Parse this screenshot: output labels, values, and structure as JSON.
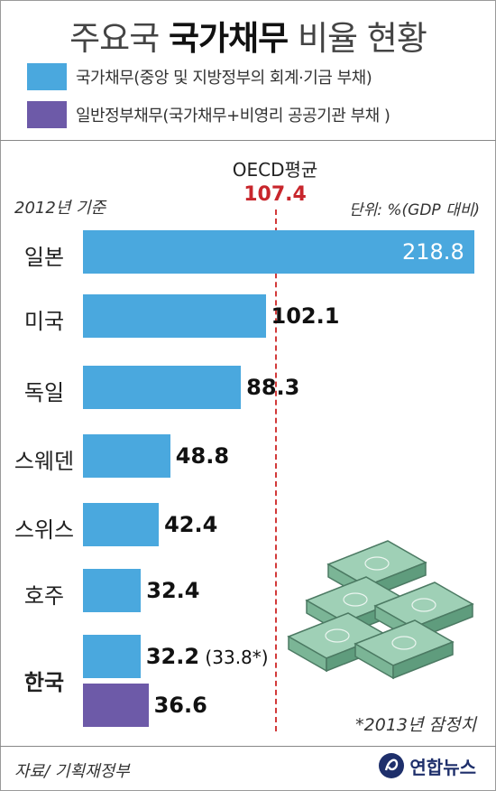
{
  "title": {
    "light_pre": "주요국",
    "bold": "국가채무",
    "light_post": "비율 현황"
  },
  "legend": [
    {
      "label": "국가채무(중앙 및 지방정부의 회계·기금 부채)",
      "color": "#4aa8de"
    },
    {
      "label": "일반정부채무(국가채무+비영리 공공기관 부채 )",
      "color": "#6d5aa8"
    }
  ],
  "basis": "2012년 기준",
  "unit": "단위: %(GDP 대비)",
  "oecd": {
    "label": "OECD평균",
    "value": 107.4
  },
  "footnote": "*2013년 잠정치",
  "source": "자료/ 기획재정부",
  "logo": "연합뉴스",
  "chart_data": {
    "type": "bar",
    "orientation": "horizontal",
    "title": "주요국 국가채무 비율 현황",
    "categories": [
      "일본",
      "미국",
      "독일",
      "스웨덴",
      "스위스",
      "호주",
      "한국"
    ],
    "series": [
      {
        "name": "국가채무(중앙 및 지방정부의 회계·기금 부채)",
        "values": [
          218.8,
          102.1,
          88.3,
          48.8,
          42.4,
          32.4,
          32.2
        ]
      },
      {
        "name": "일반정부채무(국가채무+비영리 공공기관 부채 )",
        "values": [
          null,
          null,
          null,
          null,
          null,
          null,
          36.6
        ]
      }
    ],
    "annotations": [
      {
        "category": "한국",
        "text": "(33.8*)"
      }
    ],
    "reference_line": {
      "label": "OECD평균",
      "value": 107.4
    },
    "xlim": [
      0,
      218.8
    ],
    "grid": false,
    "legend": "top"
  }
}
